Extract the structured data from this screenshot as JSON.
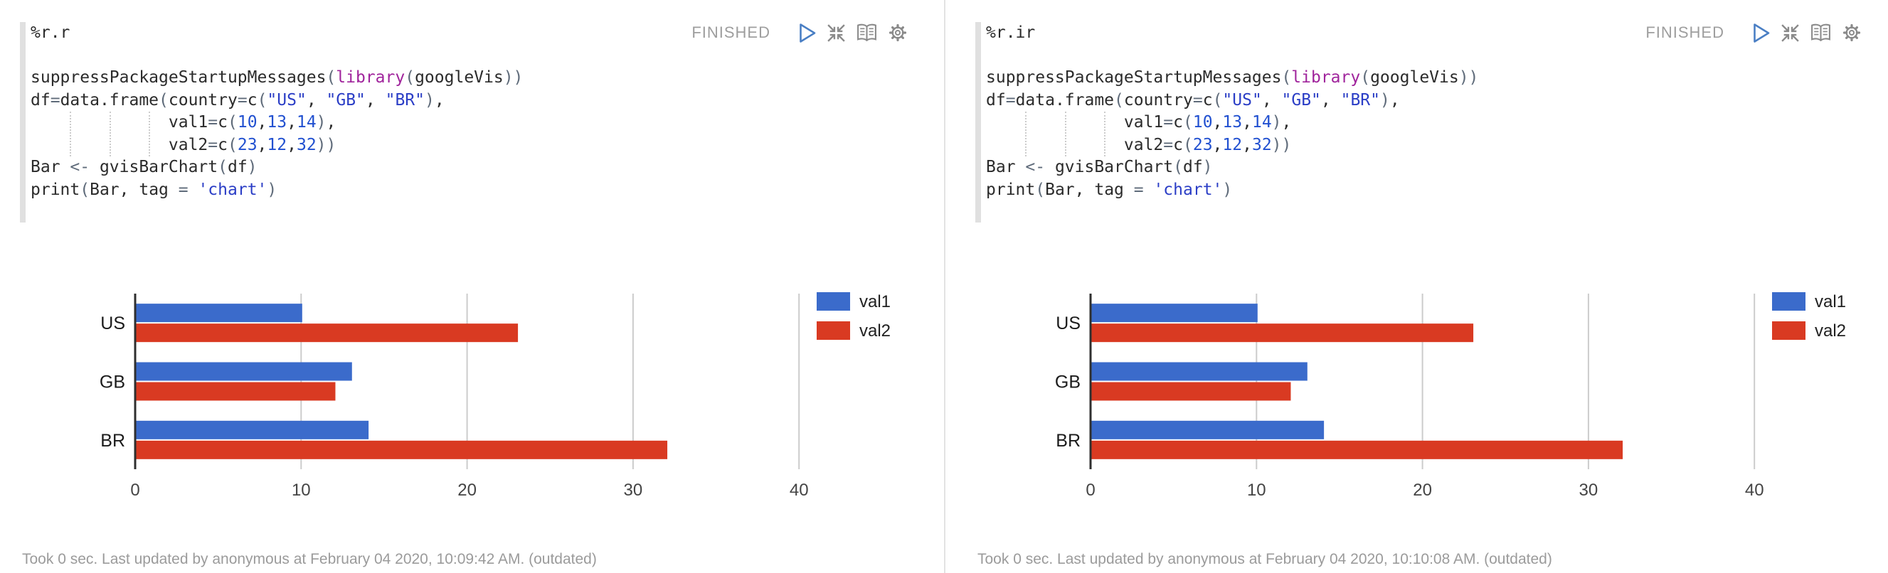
{
  "paragraphs": [
    {
      "title": "%r.r",
      "status": "FINISHED",
      "footer": "Took 0 sec. Last updated by anonymous at February 04 2020, 10:09:42 AM. (outdated)"
    },
    {
      "title": "%r.ir",
      "status": "FINISHED",
      "footer": "Took 0 sec. Last updated by anonymous at February 04 2020, 10:10:08 AM. (outdated)"
    }
  ],
  "icons": [
    "run-icon",
    "shrink-icon",
    "toggle-editor-icon",
    "settings-icon"
  ],
  "code": {
    "indent_guide_cols": [
      4,
      8,
      12
    ],
    "lines": [
      [
        [
          "suppressPackageStartupMessages",
          "pl"
        ],
        [
          "(",
          "pa"
        ],
        [
          "library",
          "kw"
        ],
        [
          "(",
          "pa"
        ],
        [
          "googleVis",
          "pl"
        ],
        [
          "))",
          "pa"
        ]
      ],
      [
        [
          "df",
          "pl"
        ],
        [
          "=",
          "op"
        ],
        [
          "data.frame",
          "pl"
        ],
        [
          "(",
          "pa"
        ],
        [
          "country",
          "pl"
        ],
        [
          "=",
          "op"
        ],
        [
          "c",
          "pl"
        ],
        [
          "(",
          "pa"
        ],
        [
          "\"US\"",
          "st"
        ],
        [
          ", ",
          "pl"
        ],
        [
          "\"GB\"",
          "st"
        ],
        [
          ", ",
          "pl"
        ],
        [
          "\"BR\"",
          "st"
        ],
        [
          ")",
          "pa"
        ],
        [
          ",",
          "pl"
        ]
      ],
      [
        [
          "              ",
          "ws"
        ],
        [
          "val1",
          "pl"
        ],
        [
          "=",
          "op"
        ],
        [
          "c",
          "pl"
        ],
        [
          "(",
          "pa"
        ],
        [
          "10",
          "nu"
        ],
        [
          ",",
          "pl"
        ],
        [
          "13",
          "nu"
        ],
        [
          ",",
          "pl"
        ],
        [
          "14",
          "nu"
        ],
        [
          ")",
          "pa"
        ],
        [
          ",",
          "pl"
        ]
      ],
      [
        [
          "              ",
          "ws"
        ],
        [
          "val2",
          "pl"
        ],
        [
          "=",
          "op"
        ],
        [
          "c",
          "pl"
        ],
        [
          "(",
          "pa"
        ],
        [
          "23",
          "nu"
        ],
        [
          ",",
          "pl"
        ],
        [
          "12",
          "nu"
        ],
        [
          ",",
          "pl"
        ],
        [
          "32",
          "nu"
        ],
        [
          "))",
          "pa"
        ]
      ],
      [
        [
          "Bar ",
          "pl"
        ],
        [
          "<-",
          "op"
        ],
        [
          " gvisBarChart",
          "pl"
        ],
        [
          "(",
          "pa"
        ],
        [
          "df",
          "pl"
        ],
        [
          ")",
          "pa"
        ]
      ],
      [
        [
          "print",
          "pl"
        ],
        [
          "(",
          "pa"
        ],
        [
          "Bar, tag ",
          "pl"
        ],
        [
          "=",
          "op"
        ],
        [
          " ",
          "pl"
        ],
        [
          "'chart'",
          "st"
        ],
        [
          ")",
          "pa"
        ]
      ]
    ]
  },
  "chart_data": {
    "type": "bar",
    "orientation": "horizontal",
    "categories": [
      "US",
      "GB",
      "BR"
    ],
    "series": [
      {
        "name": "val1",
        "color": "#3b6bcb",
        "values": [
          10,
          13,
          14
        ]
      },
      {
        "name": "val2",
        "color": "#d93a22",
        "values": [
          23,
          12,
          32
        ]
      }
    ],
    "ticks": [
      0,
      10,
      20,
      30,
      40
    ],
    "xlim": [
      0,
      45
    ],
    "grid": true,
    "legend_position": "right",
    "title": "",
    "xlabel": "",
    "ylabel": ""
  },
  "colors": {
    "status_gray": "#9e9e9e",
    "icon_gray": "#8a8a8a",
    "play_blue": "#4a7fc4",
    "gutter_gray": "#e0e0e0",
    "bar_blue": "#3b6bcb",
    "bar_red": "#d93a22",
    "keyword_purple": "#a0249c",
    "string_blue": "#2b3ec6",
    "number_blue": "#2150d0"
  }
}
